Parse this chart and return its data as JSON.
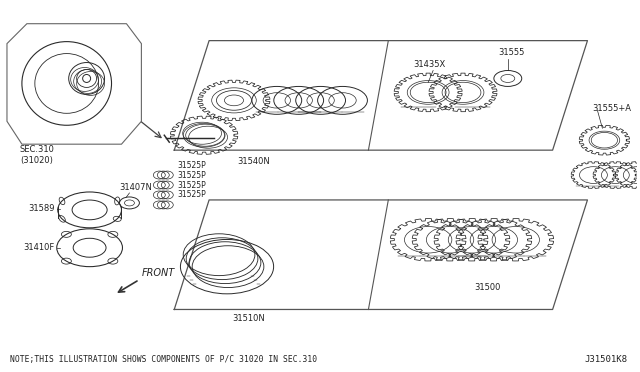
{
  "bg_color": "#ffffff",
  "note_text": "NOTE;THIS ILLUSTRATION SHOWS COMPONENTS OF P/C 31020 IN SEC.310",
  "diagram_id": "J31501K8",
  "labels": {
    "sec310": "SEC.310\n(31020)",
    "part31589": "31589",
    "part31407N": "31407N",
    "part31525P": "31525P",
    "part31410F": "31410F",
    "part31540N": "31540N",
    "part31510N": "31510N",
    "part31500": "31500",
    "part31435X": "31435X",
    "part31555": "31555",
    "part31555A": "31555+A",
    "front_label": "FRONT"
  },
  "lc": "#2a2a2a",
  "tc": "#222222",
  "fs": 6.0,
  "fs_note": 5.8,
  "fs_id": 6.5,
  "lw": 0.7
}
